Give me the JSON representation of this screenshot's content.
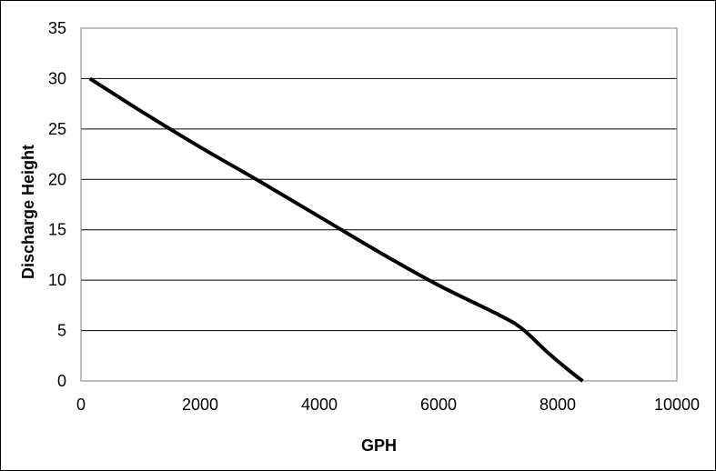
{
  "chart_data": {
    "type": "line",
    "title": "",
    "xlabel": "GPH",
    "ylabel": "Discharge Height",
    "xlim": [
      0,
      10000
    ],
    "ylim": [
      0,
      35
    ],
    "x_ticks": [
      0,
      2000,
      4000,
      6000,
      8000,
      10000
    ],
    "y_ticks": [
      0,
      5,
      10,
      15,
      20,
      25,
      30,
      35
    ],
    "grid": "horizontal",
    "legend": "none",
    "series": [
      {
        "color": "#000000",
        "x": [
          150,
          1000,
          2000,
          3000,
          4000,
          5000,
          6000,
          7000,
          7400,
          7800,
          8200,
          8420
        ],
        "y": [
          30,
          26.8,
          23.2,
          19.8,
          16.3,
          12.8,
          9.5,
          6.6,
          5.2,
          3.0,
          1.0,
          0
        ]
      }
    ]
  }
}
